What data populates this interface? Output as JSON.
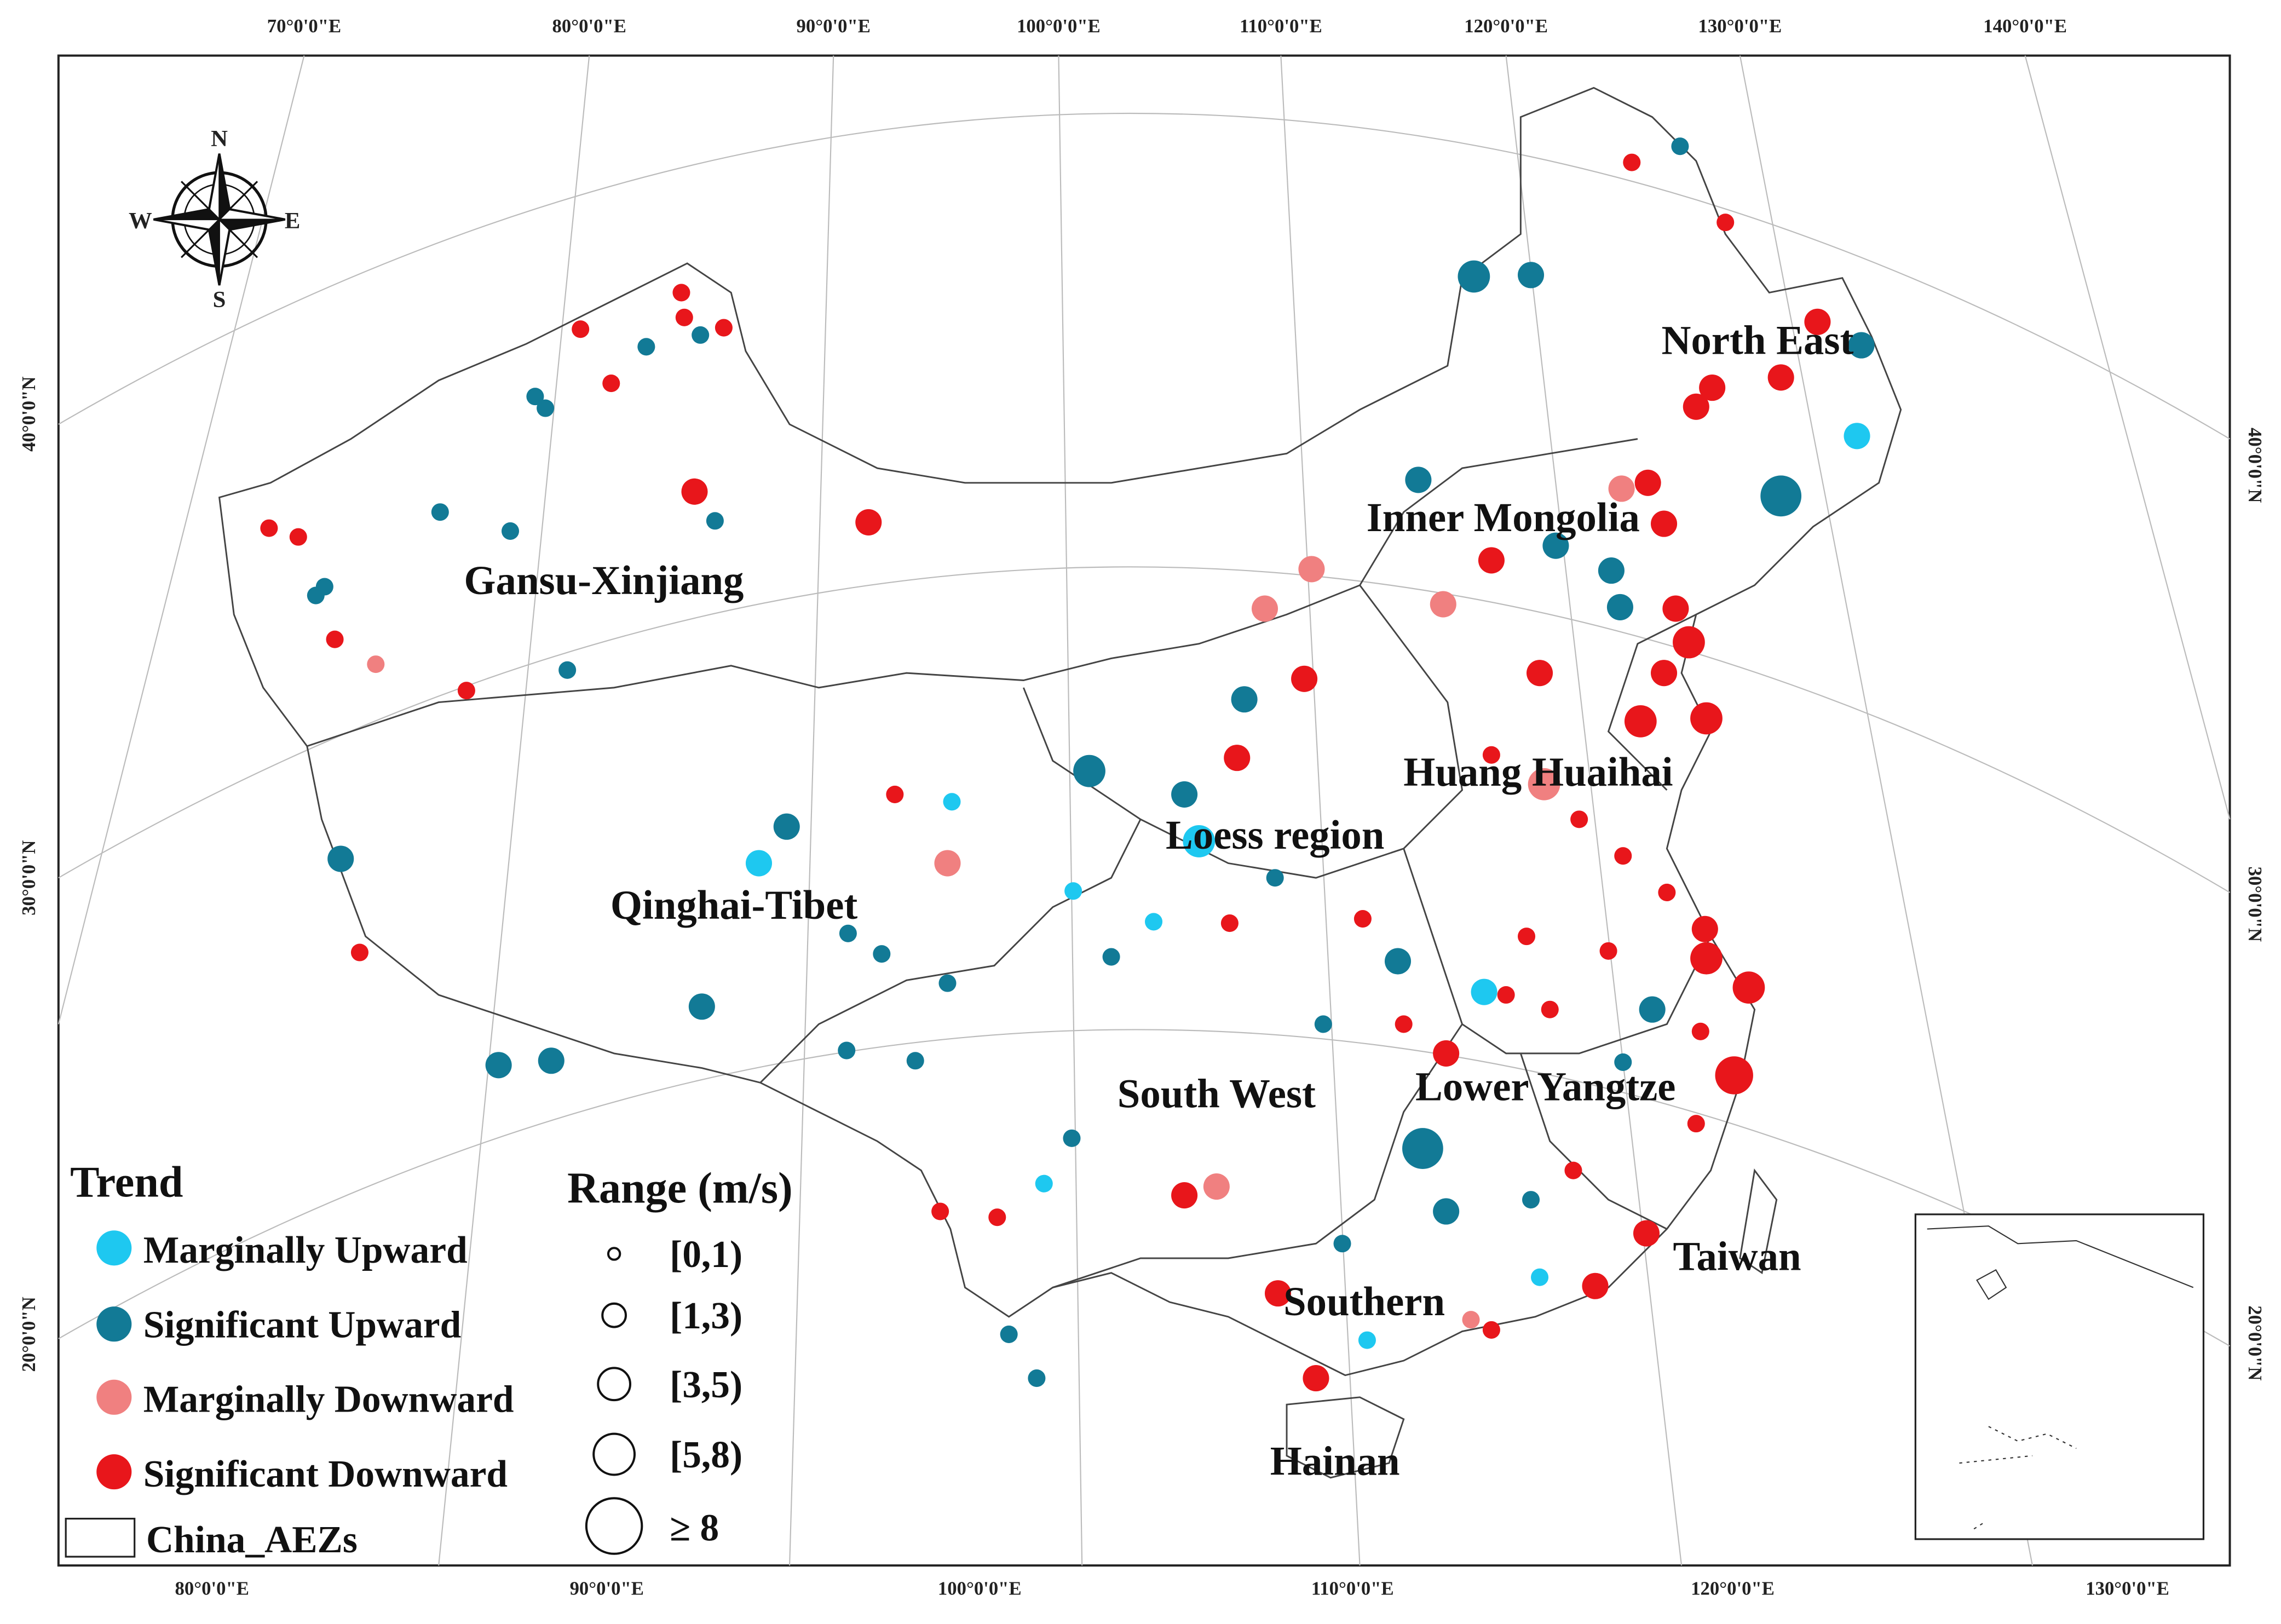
{
  "map": {
    "top_axis_labels": [
      "70°0'0\"E",
      "80°0'0\"E",
      "90°0'0\"E",
      "100°0'0\"E",
      "110°0'0\"E",
      "120°0'0\"E",
      "130°0'0\"E",
      "140°0'0\"E"
    ],
    "bottom_axis_labels": [
      "80°0'0\"E",
      "90°0'0\"E",
      "100°0'0\"E",
      "110°0'0\"E",
      "120°0'0\"E",
      "130°0'0\"E"
    ],
    "left_axis_labels": [
      "40°0'0\"N",
      "30°0'0\"N",
      "20°0'0\"N"
    ],
    "right_axis_labels": [
      "40°0'0\"N",
      "30°0'0\"N",
      "20°0'0\"N"
    ],
    "region_labels": [
      "Gansu-Xinjiang",
      "Qinghai-Tibet",
      "Loess region",
      "Huang Huaihai",
      "Inner Mongolia",
      "North East",
      "South West",
      "Lower Yangtze",
      "Taiwan",
      "Southern",
      "Hainan"
    ],
    "compass": [
      "N",
      "E",
      "S",
      "W"
    ],
    "legend": {
      "trend_title": "Trend",
      "trend_items": [
        "Marginally Upward",
        "Significant Upward",
        "Marginally Downward",
        "Significant Downward"
      ],
      "boundary_item": "China_AEZs",
      "range_title": "Range (m/s)",
      "range_items": [
        "[0,1)",
        "[1,3)",
        "[3,5)",
        "[5,8)",
        "≥ 8"
      ]
    }
  }
}
